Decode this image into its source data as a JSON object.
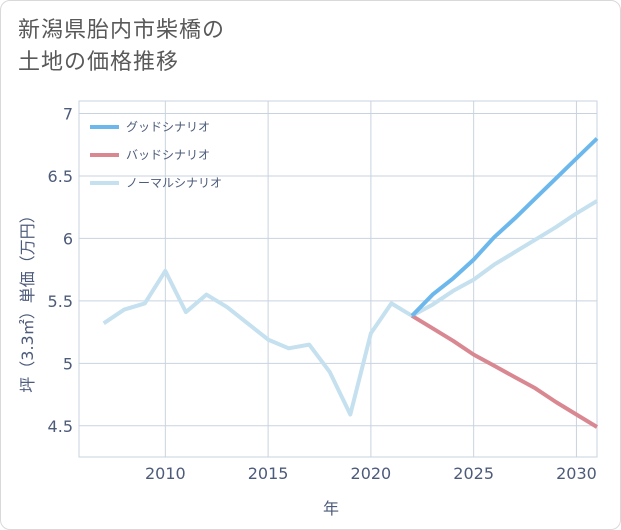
{
  "title_lines": [
    "新潟県胎内市柴橋の",
    "土地の価格推移"
  ],
  "chart_data": {
    "type": "line",
    "xlabel": "年",
    "ylabel": "坪（3.3㎡）単価（万円）",
    "xlim": [
      2005.8,
      2031
    ],
    "ylim": [
      4.25,
      7.1
    ],
    "x_ticks": [
      2010,
      2015,
      2020,
      2025,
      2030
    ],
    "y_ticks": [
      4.5,
      5,
      5.5,
      6,
      6.5,
      7
    ],
    "grid": true,
    "legend_position": "top-left",
    "series": [
      {
        "name": "グッドシナリオ",
        "color": "#6cb8ec",
        "x": [
          2022,
          2023,
          2024,
          2025,
          2026,
          2027,
          2028,
          2029,
          2030,
          2031
        ],
        "values": [
          5.38,
          5.55,
          5.68,
          5.83,
          6.01,
          6.16,
          6.32,
          6.48,
          6.64,
          6.8
        ]
      },
      {
        "name": "バッドシナリオ",
        "color": "#d98892",
        "x": [
          2022,
          2023,
          2024,
          2025,
          2026,
          2027,
          2028,
          2029,
          2030,
          2031
        ],
        "values": [
          5.38,
          5.28,
          5.18,
          5.07,
          4.98,
          4.89,
          4.8,
          4.69,
          4.59,
          4.49
        ]
      },
      {
        "name": "ノーマルシナリオ",
        "color": "#c5e0ee",
        "x": [
          2007,
          2008,
          2009,
          2010,
          2011,
          2012,
          2013,
          2014,
          2015,
          2016,
          2017,
          2018,
          2019,
          2020,
          2021,
          2022,
          2023,
          2024,
          2025,
          2026,
          2027,
          2028,
          2029,
          2030,
          2031
        ],
        "values": [
          5.32,
          5.43,
          5.48,
          5.74,
          5.41,
          5.55,
          5.45,
          5.32,
          5.19,
          5.12,
          5.15,
          4.93,
          4.59,
          5.24,
          5.48,
          5.38,
          5.47,
          5.58,
          5.67,
          5.79,
          5.89,
          5.99,
          6.09,
          6.2,
          6.3
        ]
      }
    ]
  }
}
